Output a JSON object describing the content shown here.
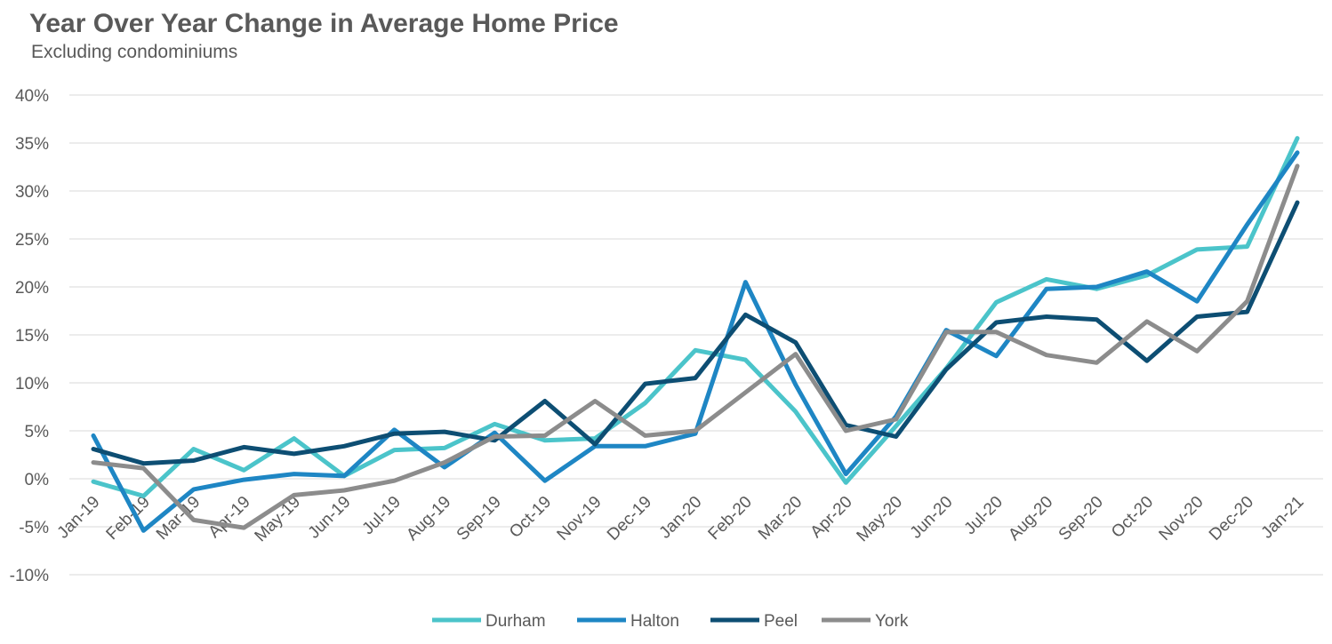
{
  "chart_data": {
    "type": "line",
    "title": "Year Over Year Change in Average Home Price",
    "subtitle": "Excluding condominiums",
    "xlabel": "",
    "ylabel": "",
    "ylim": [
      -10,
      40
    ],
    "y_ticks": [
      "40%",
      "35%",
      "30%",
      "25%",
      "20%",
      "15%",
      "10%",
      "5%",
      "0%",
      "-5%",
      "-10%"
    ],
    "y_tick_values": [
      40,
      35,
      30,
      25,
      20,
      15,
      10,
      5,
      0,
      -5,
      -10
    ],
    "grid": "horizontal",
    "legend_position": "bottom",
    "categories": [
      "Jan-19",
      "Feb-19",
      "Mar-19",
      "Apr-19",
      "May-19",
      "Jun-19",
      "Jul-19",
      "Aug-19",
      "Sep-19",
      "Oct-19",
      "Nov-19",
      "Dec-19",
      "Jan-20",
      "Feb-20",
      "Mar-20",
      "Apr-20",
      "May-20",
      "Jun-20",
      "Jul-20",
      "Aug-20",
      "Sep-20",
      "Oct-20",
      "Nov-20",
      "Dec-20",
      "Jan-21"
    ],
    "series": [
      {
        "name": "Durham",
        "color": "#4BC4CA",
        "values": [
          -0.3,
          -1.8,
          3.1,
          0.9,
          4.2,
          0.3,
          3.0,
          3.2,
          5.7,
          4.0,
          4.2,
          7.9,
          13.4,
          12.4,
          7.0,
          -0.4,
          5.5,
          11.5,
          18.4,
          20.8,
          19.8,
          21.2,
          23.9,
          24.2,
          35.5
        ]
      },
      {
        "name": "Halton",
        "color": "#1E86C4",
        "values": [
          4.5,
          -5.4,
          -1.1,
          -0.1,
          0.5,
          0.3,
          5.1,
          1.2,
          4.8,
          -0.2,
          3.4,
          3.4,
          4.7,
          20.5,
          9.8,
          0.5,
          6.5,
          15.5,
          12.8,
          19.8,
          20.0,
          21.6,
          18.5,
          26.5,
          34.0
        ]
      },
      {
        "name": "Peel",
        "color": "#0D4E73",
        "values": [
          3.1,
          1.6,
          1.9,
          3.3,
          2.6,
          3.4,
          4.7,
          4.9,
          4.0,
          8.1,
          3.6,
          9.9,
          10.5,
          17.1,
          14.2,
          5.6,
          4.4,
          11.4,
          16.3,
          16.9,
          16.6,
          12.3,
          16.9,
          17.4,
          28.8
        ]
      },
      {
        "name": "York",
        "color": "#8C8C8C",
        "values": [
          1.7,
          1.1,
          -4.3,
          -5.1,
          -1.7,
          -1.2,
          -0.2,
          1.7,
          4.4,
          4.5,
          8.1,
          4.5,
          5.0,
          9.0,
          13.0,
          5.0,
          6.2,
          15.3,
          15.3,
          12.9,
          12.1,
          16.4,
          13.3,
          18.5,
          32.6
        ]
      }
    ]
  }
}
